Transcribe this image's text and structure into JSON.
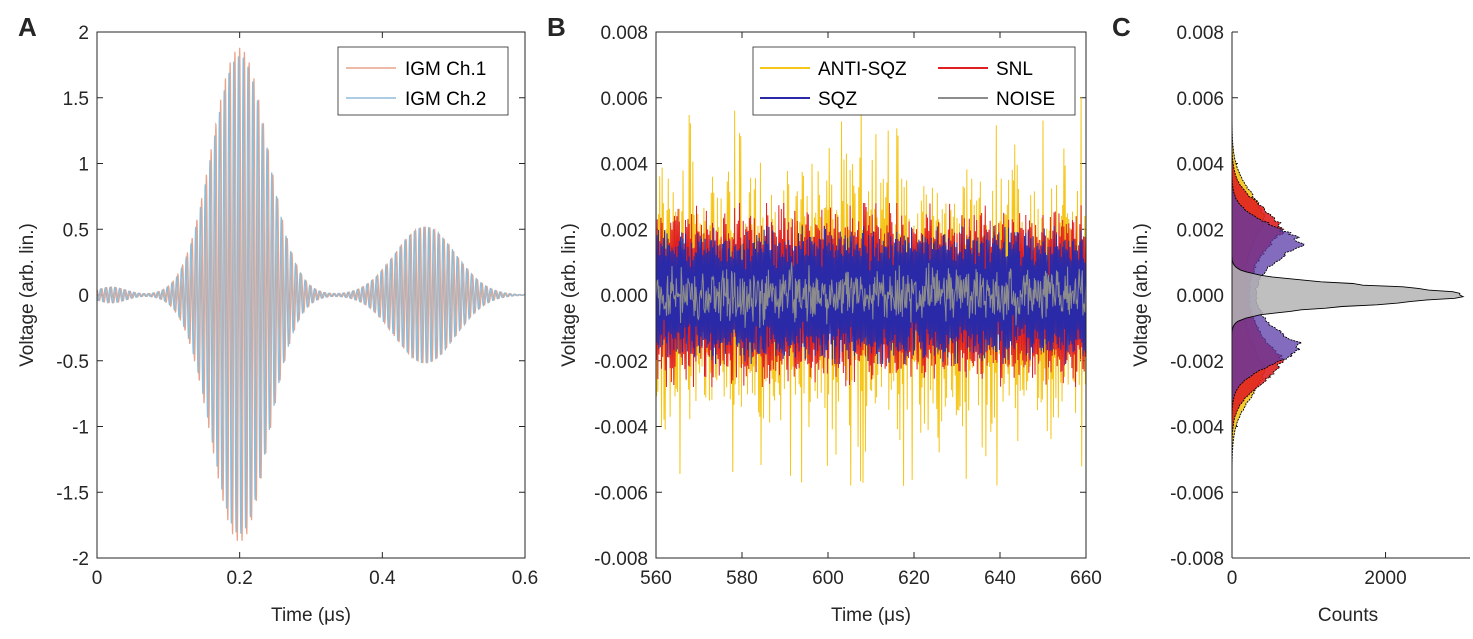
{
  "chart_data": [
    {
      "panel_label": "A",
      "type": "line",
      "xlabel": "Time (μs)",
      "ylabel": "Voltage (arb. lin.)",
      "xlim": [
        0,
        0.6
      ],
      "ylim": [
        -2,
        2
      ],
      "x_ticks": [
        "0",
        "0.2",
        "0.4",
        "0.6"
      ],
      "y_ticks": [
        "2",
        "1.5",
        "1",
        "0.5",
        "0",
        "-0.5",
        "-1",
        "-1.5",
        "-2"
      ],
      "legend_position": "top-right",
      "series": [
        {
          "name": "IGM Ch.1",
          "color": "#e8a38b",
          "description_values": {
            "main_burst_center": 0.2,
            "main_burst_peak": 1.88,
            "second_burst_center": 0.46,
            "second_burst_peak": 0.52
          }
        },
        {
          "name": "IGM Ch.2",
          "color": "#8fbcd8",
          "description_values": {
            "main_burst_center": 0.2,
            "main_burst_peak": 1.82,
            "second_burst_center": 0.46,
            "second_burst_peak": 0.52
          }
        }
      ]
    },
    {
      "panel_label": "B",
      "type": "line",
      "xlabel": "Time (μs)",
      "ylabel": "Voltage (arb. lin.)",
      "xlim": [
        560,
        660
      ],
      "ylim": [
        -0.008,
        0.008
      ],
      "x_ticks": [
        "560",
        "580",
        "600",
        "620",
        "640",
        "660"
      ],
      "y_ticks": [
        "0.008",
        "0.006",
        "0.004",
        "0.002",
        "0.000",
        "-0.002",
        "-0.004",
        "-0.006",
        "-0.008"
      ],
      "legend_position": "top-right",
      "series": [
        {
          "name": "ANTI-SQZ",
          "color": "#f5c518",
          "band_center": 0.0022,
          "band_spread": 0.0011,
          "extreme": 0.0065
        },
        {
          "name": "SNL",
          "color": "#e02020",
          "band_center": 0.0019,
          "band_spread": 0.0004,
          "extreme": 0.0028
        },
        {
          "name": "SQZ",
          "color": "#2a2aa8",
          "band_center": 0.0015,
          "band_spread": 0.0003,
          "extreme": 0.0021
        },
        {
          "name": "NOISE",
          "color": "#8c8c8c",
          "band_center": 0.0,
          "band_spread": 0.0006,
          "extreme": 0.001
        }
      ]
    },
    {
      "panel_label": "C",
      "type": "area",
      "xlabel": "Counts",
      "ylabel": "Voltage (arb. lin.)",
      "xlim": [
        0,
        3100
      ],
      "ylim": [
        -0.008,
        0.008
      ],
      "x_ticks": [
        "0",
        "2000"
      ],
      "y_ticks": [
        "0.008",
        "0.006",
        "0.004",
        "0.002",
        "0.000",
        "-0.002",
        "-0.004",
        "-0.006",
        "-0.008"
      ],
      "series": [
        {
          "name": "ANTI-SQZ",
          "color": "#f5c518",
          "histogram": "bimodal",
          "peak_counts": 420,
          "peak_voltage": 0.0022
        },
        {
          "name": "SNL",
          "color": "#e02020",
          "histogram": "bimodal",
          "peak_counts": 650,
          "peak_voltage": 0.0019
        },
        {
          "name": "SQZ",
          "color": "#5a3aa8",
          "histogram": "bimodal",
          "peak_counts": 900,
          "peak_voltage": 0.0015
        },
        {
          "name": "NOISE",
          "color": "#b4b4b4",
          "histogram": "gaussian",
          "peak_counts": 3000,
          "peak_voltage": 0.0
        }
      ]
    }
  ]
}
